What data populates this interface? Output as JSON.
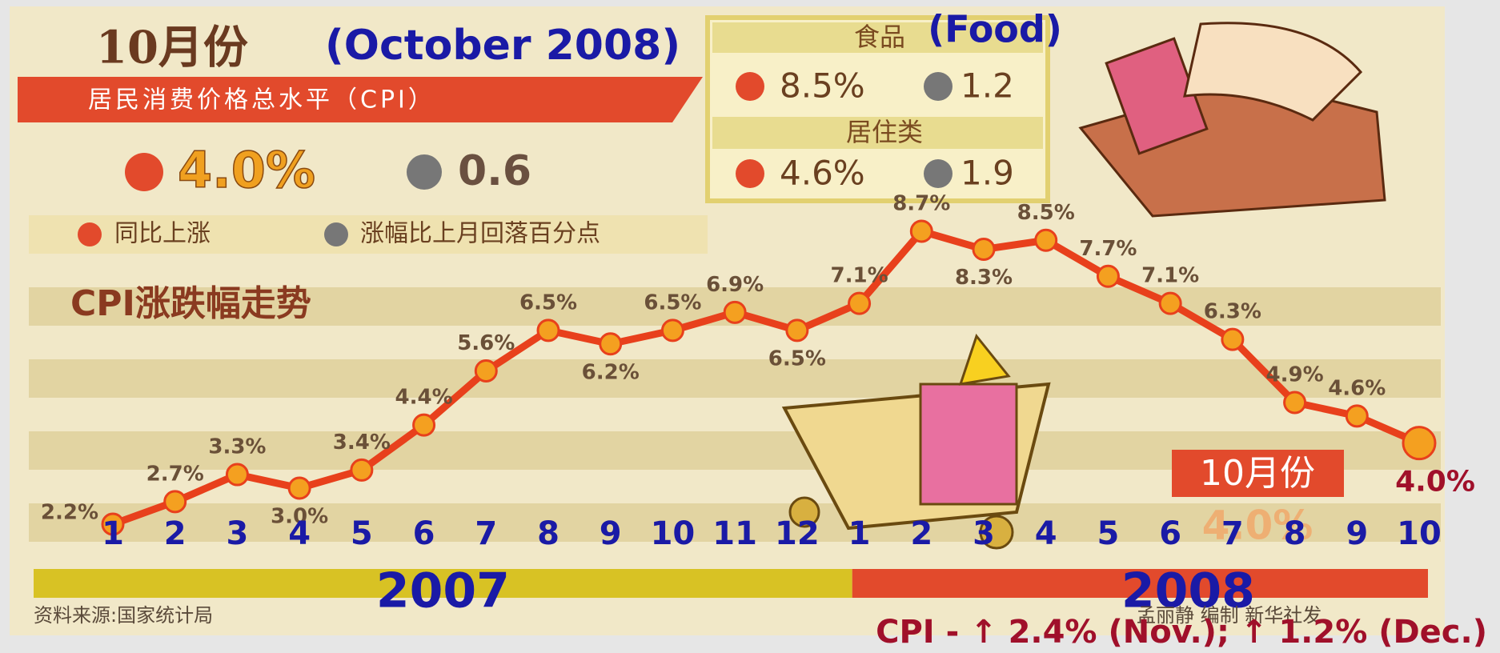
{
  "header": {
    "month": "10月份",
    "english": "(October 2008)",
    "banner": "居民消费价格总水平（CPI）",
    "yoy": "4.0%",
    "mom_drop": "0.6"
  },
  "food_box": {
    "food": "食品",
    "food_english": "(Food)",
    "food_yoy": "8.5%",
    "food_drop": "1.2",
    "housing": "居住类",
    "housing_yoy": "4.6%",
    "housing_drop": "1.9"
  },
  "legend": {
    "rise": "同比上涨",
    "drop": "涨幅比上月回落百分点"
  },
  "chart_data": {
    "type": "line",
    "title": "CPI涨跌幅走势",
    "color": "#e8401c",
    "categories": [
      "1",
      "2",
      "3",
      "4",
      "5",
      "6",
      "7",
      "8",
      "9",
      "10",
      "11",
      "12",
      "1",
      "2",
      "3",
      "4",
      "5",
      "6",
      "7",
      "8",
      "9",
      "10"
    ],
    "year_labels": [
      "2007",
      "2008"
    ],
    "values": [
      2.2,
      2.7,
      3.3,
      3.0,
      3.4,
      4.4,
      5.6,
      6.5,
      6.2,
      6.5,
      6.9,
      6.5,
      7.1,
      8.7,
      8.3,
      8.5,
      7.7,
      7.1,
      6.3,
      4.9,
      4.6,
      4.0
    ],
    "value_labels": [
      "2.2%",
      "2.7%",
      "3.3%",
      "3.0%",
      "3.4%",
      "4.4%",
      "5.6%",
      "6.5%",
      "6.2%",
      "6.5%",
      "6.9%",
      "6.5%",
      "7.1%",
      "8.7%",
      "8.3%",
      "8.5%",
      "7.7%",
      "7.1%",
      "6.3%",
      "4.9%",
      "4.6%",
      "4.0%"
    ]
  },
  "callout": {
    "label": "10月份",
    "value": "4.0%"
  },
  "footer": {
    "source": "资料来源:国家统计局",
    "credit": "孟丽静 编制 新华社发",
    "note": "CPI - ↑ 2.4% (Nov.); ↑ 1.2% (Dec.)"
  }
}
